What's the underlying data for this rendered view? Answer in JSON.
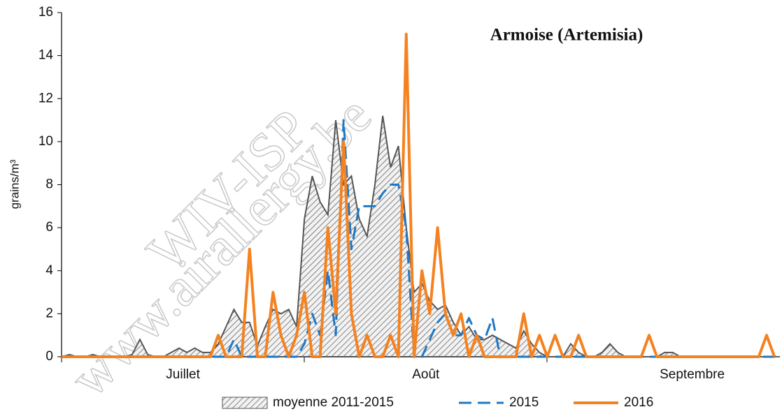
{
  "chart_data": {
    "type": "line",
    "title": "Armoise (Artemisia)",
    "y_label": "grains/m³",
    "watermarks": [
      "WIV-ISP",
      "www.airallergy.be"
    ],
    "categories": [
      null,
      null,
      null,
      null,
      null,
      null,
      null,
      null,
      null,
      null,
      null,
      null,
      null,
      null,
      null,
      "Juillet",
      null,
      null,
      null,
      null,
      null,
      null,
      null,
      null,
      null,
      null,
      null,
      null,
      null,
      null,
      null,
      null,
      null,
      null,
      null,
      null,
      null,
      null,
      null,
      null,
      null,
      null,
      null,
      null,
      null,
      null,
      "Août",
      null,
      null,
      null,
      null,
      null,
      null,
      null,
      null,
      null,
      null,
      null,
      null,
      null,
      null,
      null,
      null,
      null,
      null,
      null,
      null,
      null,
      null,
      null,
      null,
      null,
      null,
      null,
      null,
      null,
      null,
      null,
      null,
      null,
      "Septembre",
      null,
      null,
      null,
      null,
      null,
      null,
      null,
      null,
      null,
      null,
      null
    ],
    "ylim": [
      0,
      16
    ],
    "yticks": [
      0,
      2,
      4,
      6,
      8,
      10,
      12,
      14,
      16
    ],
    "series": [
      {
        "name": "moyenne 2011-2015",
        "color": "#555555",
        "style": "hatched-area",
        "values": [
          0,
          0.1,
          0,
          0,
          0.1,
          0,
          0,
          0,
          0,
          0.1,
          0.8,
          0.1,
          0,
          0,
          0.2,
          0.4,
          0.2,
          0.4,
          0.2,
          0.2,
          0.6,
          1.4,
          2.2,
          1.6,
          1.6,
          0.5,
          1.4,
          2.2,
          2.0,
          2.2,
          1.4,
          6.4,
          8.4,
          7.2,
          6.6,
          11,
          8,
          8.4,
          6.4,
          5.6,
          8,
          11.2,
          8.8,
          9.8,
          6,
          3,
          3.4,
          2.6,
          2.2,
          2.4,
          1.6,
          1,
          1.4,
          0.8,
          0.8,
          1,
          0.8,
          0.6,
          0.4,
          1.2,
          0.6,
          0.2,
          0,
          0,
          0,
          0.6,
          0.2,
          0,
          0,
          0.2,
          0.6,
          0.2,
          0,
          0,
          0,
          0,
          0,
          0.2,
          0.2,
          0,
          0,
          0,
          0,
          0,
          0,
          0,
          0,
          0,
          0,
          0,
          0,
          0
        ]
      },
      {
        "name": "2015",
        "color": "#1f77c4",
        "style": "dashed",
        "values": [
          0,
          0,
          0,
          0,
          0,
          0,
          0,
          0,
          0,
          0,
          0,
          0,
          0,
          0,
          0,
          0,
          0,
          0,
          0,
          0,
          0,
          0,
          0.8,
          0,
          0,
          0,
          0,
          0,
          0,
          0,
          0,
          0.6,
          2,
          1,
          4,
          1,
          11,
          5,
          7,
          7,
          7,
          7.6,
          8,
          8,
          6,
          0,
          0,
          0.8,
          1.6,
          2,
          1,
          1,
          1.8,
          1,
          0.8,
          1.8,
          0,
          0,
          0,
          0,
          0,
          0,
          0,
          0,
          0,
          0,
          0,
          0,
          0,
          0,
          0,
          0,
          0,
          0,
          0,
          0,
          0,
          0,
          0,
          0,
          0,
          0,
          0,
          0,
          0,
          0,
          0,
          0,
          0,
          0,
          0,
          0
        ]
      },
      {
        "name": "2016",
        "color": "#f58220",
        "style": "solid",
        "values": [
          0,
          0,
          0,
          0,
          0,
          0,
          0,
          0,
          0,
          0,
          0,
          0,
          0,
          0,
          0,
          0,
          0,
          0,
          0,
          0,
          1,
          0,
          0,
          0,
          5,
          0,
          0,
          3,
          1,
          0,
          1,
          3,
          0,
          0,
          6,
          2,
          10,
          2,
          0,
          1,
          0,
          0,
          1,
          0,
          15,
          0,
          4,
          2,
          6,
          2,
          1,
          2,
          0,
          1,
          0,
          0,
          0,
          0,
          0,
          2,
          0,
          1,
          0,
          1,
          0,
          0,
          1,
          0,
          0,
          0,
          0,
          0,
          0,
          0,
          0,
          1,
          0,
          0,
          0,
          0,
          0,
          0,
          0,
          0,
          0,
          0,
          0,
          0,
          0,
          0,
          1,
          0
        ]
      }
    ]
  }
}
